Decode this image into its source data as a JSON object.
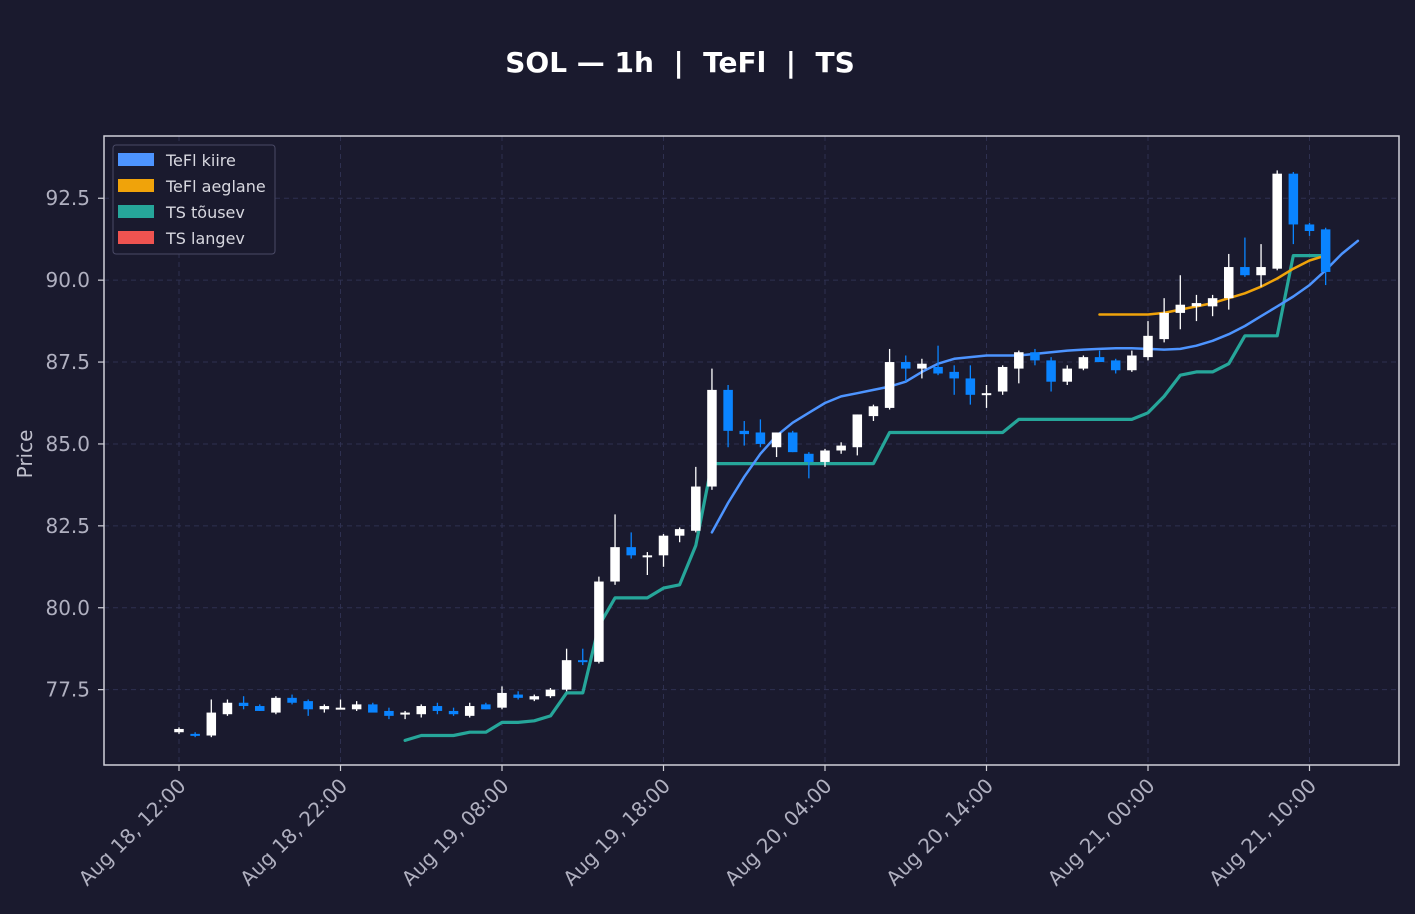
{
  "chart_data": {
    "type": "candlestick",
    "title": "SOL — 1h  |  TeFl  |  TS",
    "ylabel": "Price",
    "xlabel": "",
    "ylim": [
      75.2,
      94.4
    ],
    "yticks": [
      77.5,
      80.0,
      82.5,
      85.0,
      87.5,
      90.0,
      92.5
    ],
    "ytick_labels": [
      "77.5",
      "80.0",
      "82.5",
      "85.0",
      "87.5",
      "90.0",
      "92.5"
    ],
    "x_start": "Aug 18, 12:00",
    "x_step_hours": 1,
    "xtick_index": [
      0,
      10,
      20,
      30,
      40,
      50,
      60,
      70
    ],
    "xtick_labels": [
      "Aug 18, 12:00",
      "Aug 18, 22:00",
      "Aug 19, 08:00",
      "Aug 19, 18:00",
      "Aug 20, 04:00",
      "Aug 20, 14:00",
      "Aug 21, 00:00",
      "Aug 21, 10:00"
    ],
    "grid": true,
    "legend_position": "top-left",
    "colors": {
      "background": "#1a1a2e",
      "up_candle": "#ffffff",
      "down_candle": "#0a84ff",
      "tefl_fast": "#4d94ff",
      "tefl_slow": "#f0a30a",
      "ts_up": "#26a69a",
      "ts_down": "#ef5350",
      "grid": "#2e3050",
      "axis": "#d0d0d8"
    },
    "legend": [
      {
        "label": "TeFl kiire",
        "color": "#4d94ff"
      },
      {
        "label": "TeFl aeglane",
        "color": "#f0a30a"
      },
      {
        "label": "TS tõusev",
        "color": "#26a69a"
      },
      {
        "label": "TS langev",
        "color": "#ef5350"
      }
    ],
    "candles": [
      [
        76.2,
        76.35,
        76.15,
        76.3
      ],
      [
        76.15,
        76.2,
        76.05,
        76.1
      ],
      [
        76.1,
        77.2,
        76.05,
        76.8
      ],
      [
        76.75,
        77.2,
        76.7,
        77.1
      ],
      [
        77.1,
        77.3,
        76.9,
        77.0
      ],
      [
        77.0,
        77.05,
        76.85,
        76.85
      ],
      [
        76.8,
        77.3,
        76.75,
        77.25
      ],
      [
        77.25,
        77.35,
        77.05,
        77.1
      ],
      [
        77.15,
        77.2,
        76.7,
        76.9
      ],
      [
        76.9,
        77.05,
        76.8,
        77.0
      ],
      [
        76.95,
        77.2,
        76.9,
        76.95
      ],
      [
        76.9,
        77.15,
        76.85,
        77.05
      ],
      [
        77.05,
        77.1,
        76.85,
        76.8
      ],
      [
        76.85,
        76.95,
        76.6,
        76.7
      ],
      [
        76.75,
        76.85,
        76.6,
        76.8
      ],
      [
        76.75,
        77.05,
        76.65,
        77.0
      ],
      [
        77.0,
        77.1,
        76.75,
        76.85
      ],
      [
        76.85,
        76.95,
        76.7,
        76.75
      ],
      [
        76.7,
        77.1,
        76.65,
        77.0
      ],
      [
        77.05,
        77.1,
        76.9,
        76.9
      ],
      [
        76.95,
        77.6,
        76.9,
        77.4
      ],
      [
        77.35,
        77.45,
        77.2,
        77.25
      ],
      [
        77.2,
        77.35,
        77.15,
        77.3
      ],
      [
        77.3,
        77.55,
        77.25,
        77.5
      ],
      [
        77.5,
        78.75,
        77.45,
        78.4
      ],
      [
        78.4,
        78.75,
        78.25,
        78.35
      ],
      [
        78.35,
        80.95,
        78.3,
        80.8
      ],
      [
        80.8,
        82.85,
        80.7,
        81.85
      ],
      [
        81.85,
        82.3,
        81.5,
        81.6
      ],
      [
        81.6,
        81.7,
        81.0,
        81.6
      ],
      [
        81.6,
        82.25,
        81.25,
        82.2
      ],
      [
        82.2,
        82.45,
        82.0,
        82.4
      ],
      [
        82.35,
        84.3,
        82.3,
        83.7
      ],
      [
        83.7,
        87.3,
        83.6,
        86.65
      ],
      [
        86.65,
        86.8,
        84.9,
        85.4
      ],
      [
        85.4,
        85.7,
        84.95,
        85.3
      ],
      [
        85.35,
        85.75,
        84.9,
        85.0
      ],
      [
        84.9,
        85.35,
        84.6,
        85.35
      ],
      [
        85.35,
        85.4,
        84.75,
        84.75
      ],
      [
        84.7,
        84.75,
        83.95,
        84.45
      ],
      [
        84.45,
        84.85,
        84.3,
        84.8
      ],
      [
        84.8,
        85.05,
        84.7,
        84.95
      ],
      [
        84.9,
        85.9,
        84.65,
        85.9
      ],
      [
        85.85,
        86.2,
        85.7,
        86.15
      ],
      [
        86.1,
        87.9,
        86.05,
        87.5
      ],
      [
        87.5,
        87.7,
        86.9,
        87.3
      ],
      [
        87.3,
        87.6,
        87.0,
        87.45
      ],
      [
        87.35,
        88.0,
        87.1,
        87.15
      ],
      [
        87.2,
        87.4,
        86.5,
        87.0
      ],
      [
        87.0,
        87.4,
        86.2,
        86.5
      ],
      [
        86.5,
        86.8,
        86.1,
        86.55
      ],
      [
        86.6,
        87.4,
        86.5,
        87.35
      ],
      [
        87.3,
        87.85,
        86.85,
        87.8
      ],
      [
        87.8,
        87.9,
        87.4,
        87.55
      ],
      [
        87.55,
        87.65,
        86.6,
        86.9
      ],
      [
        86.9,
        87.4,
        86.8,
        87.3
      ],
      [
        87.3,
        87.7,
        87.25,
        87.65
      ],
      [
        87.65,
        87.85,
        87.5,
        87.5
      ],
      [
        87.55,
        87.6,
        87.15,
        87.25
      ],
      [
        87.25,
        87.85,
        87.2,
        87.7
      ],
      [
        87.65,
        88.75,
        87.55,
        88.3
      ],
      [
        88.2,
        89.45,
        88.1,
        89.0
      ],
      [
        89.0,
        90.15,
        88.5,
        89.25
      ],
      [
        89.2,
        89.55,
        88.75,
        89.3
      ],
      [
        89.2,
        89.55,
        88.9,
        89.45
      ],
      [
        89.45,
        90.8,
        89.1,
        90.4
      ],
      [
        90.4,
        91.3,
        90.1,
        90.15
      ],
      [
        90.15,
        91.1,
        89.8,
        90.4
      ],
      [
        90.35,
        93.35,
        90.3,
        93.25
      ],
      [
        93.25,
        93.3,
        91.1,
        91.7
      ],
      [
        91.7,
        91.75,
        91.35,
        91.5
      ],
      [
        91.55,
        91.6,
        89.85,
        90.25
      ]
    ],
    "series": [
      {
        "name": "TeFl kiire",
        "start_index": 33,
        "values": [
          82.3,
          83.2,
          84.0,
          84.7,
          85.25,
          85.65,
          85.95,
          86.25,
          86.45,
          86.55,
          86.65,
          86.75,
          86.9,
          87.2,
          87.45,
          87.6,
          87.65,
          87.7,
          87.7,
          87.7,
          87.75,
          87.8,
          87.85,
          87.88,
          87.9,
          87.92,
          87.92,
          87.9,
          87.88,
          87.9,
          88.0,
          88.15,
          88.35,
          88.6,
          88.9,
          89.2,
          89.5,
          89.85,
          90.3,
          90.8,
          91.2
        ]
      },
      {
        "name": "TeFl aeglane",
        "start_index": 57,
        "values": [
          88.95,
          88.95,
          88.95,
          88.95,
          89.0,
          89.1,
          89.2,
          89.3,
          89.45,
          89.6,
          89.8,
          90.05,
          90.35,
          90.6,
          90.75
        ]
      },
      {
        "name": "TS tõusev",
        "start_index": 14,
        "values": [
          75.95,
          76.1,
          76.1,
          76.1,
          76.2,
          76.2,
          76.5,
          76.5,
          76.55,
          76.7,
          77.4,
          77.4,
          79.45,
          80.3,
          80.3,
          80.3,
          80.6,
          80.7,
          81.9,
          84.4,
          84.4,
          84.4,
          84.4,
          84.4,
          84.4,
          84.4,
          84.4,
          84.4,
          84.4,
          84.4,
          85.35,
          85.35,
          85.35,
          85.35,
          85.35,
          85.35,
          85.35,
          85.35,
          85.75,
          85.75,
          85.75,
          85.75,
          85.75,
          85.75,
          85.75,
          85.75,
          85.95,
          86.45,
          87.1,
          87.2,
          87.2,
          87.45,
          88.3,
          88.3,
          88.3,
          90.75,
          90.75,
          90.75
        ]
      },
      {
        "name": "TS langev",
        "values": []
      }
    ]
  }
}
